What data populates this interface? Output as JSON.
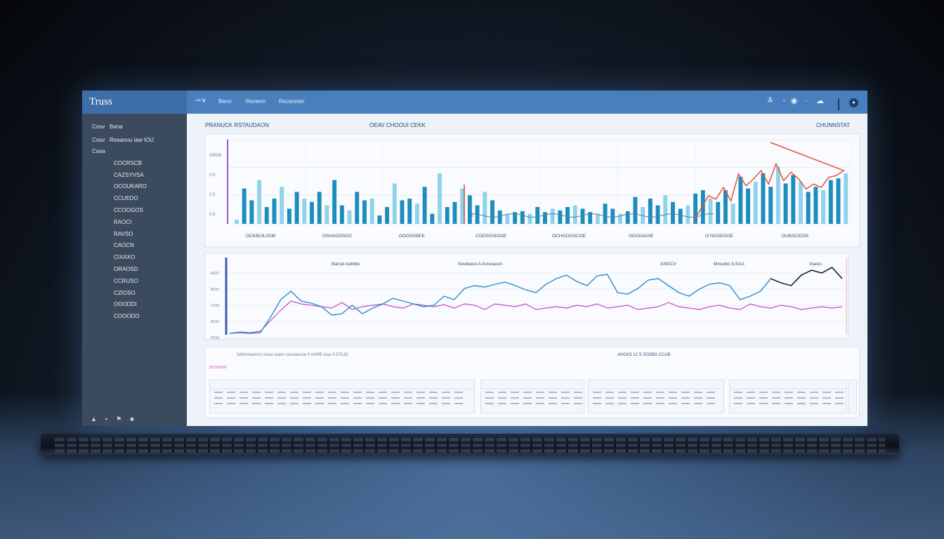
{
  "app": {
    "brand": "Truss",
    "top_nav": [
      "Benn",
      "Renenn",
      "Recennen"
    ]
  },
  "sidebar": {
    "header": [
      "Cosv",
      "Bana"
    ],
    "subheader": [
      "Cosv",
      "Reaanou iaw IOlJ"
    ],
    "items": [
      "Casa",
      "COCRSCB",
      "CAZSYVSA",
      "OCOUKARO",
      "CCUEDO",
      "CCOOGOS",
      "RAOCI",
      "RAVSO",
      "CAOCN",
      "CIXAXO",
      "ORAOSD",
      "CCRUSO",
      "CZIOSO",
      "OOODDI",
      "COOODO"
    ],
    "footer_icons": [
      "bell-icon",
      "lock-icon",
      "flag-icon",
      "chat-icon"
    ]
  },
  "chart1": {
    "left_title": "PRANUCK RSTAUDAON",
    "center_title": "OEAV CHOOUI CEKK",
    "right_title": "CHUNNSTAT",
    "ytick_labels": [
      "ORDB",
      "0.5",
      "0.5",
      "0.5"
    ],
    "xtick_labels": [
      "OCKBUILSOB",
      "OSHAOOSGC",
      "OOOSSBEE",
      "COOSSSIOOE",
      "OCHOOOSCOE",
      "OOSIAIASE",
      "O NOSEOOE",
      "OUBSCIOSE"
    ]
  },
  "chart2": {
    "labels": [
      "Bansd Aebbto",
      "Sewbaoo A Avnoauon",
      "ANOCV",
      "Mnoubo ILSAA",
      "Viaoio"
    ],
    "ytick_labels": [
      "ROO",
      "BOO",
      "COO",
      "BOO",
      "ROO"
    ]
  },
  "bottom": {
    "header_text": "Sdlnnneamsn noau seem conoaosoe 4 AARB Ioao 5 ESUO",
    "header_right": "ANCKS 12 S SOSBS CCAB",
    "tag_label": "DCOOOOI",
    "cards": [
      "D1",
      "D2",
      "D3",
      "D4",
      "D5"
    ]
  },
  "chart_data": [
    {
      "type": "bar",
      "title": "OEAV CHOOUI CEKK",
      "values": [
        5,
        42,
        28,
        52,
        20,
        30,
        44,
        18,
        38,
        30,
        26,
        38,
        22,
        52,
        22,
        16,
        38,
        28,
        30,
        10,
        20,
        48,
        28,
        30,
        24,
        44,
        12,
        60,
        20,
        26,
        42,
        34,
        22,
        38,
        28,
        16,
        12,
        14,
        15,
        12,
        20,
        14,
        18,
        16,
        20,
        22,
        18,
        14,
        12,
        24,
        18,
        12,
        15,
        32,
        20,
        30,
        22,
        34,
        26,
        18,
        22,
        36,
        40,
        30,
        26,
        40,
        24,
        56,
        42,
        50,
        60,
        44,
        68,
        48,
        58,
        50,
        38,
        44,
        40,
        52,
        54,
        60
      ],
      "colors": {
        "bar": "#1c8dbd",
        "bar_light": "#8fd3ea",
        "line": "#e2533a"
      },
      "ylim": [
        0,
        100
      ]
    },
    {
      "type": "line",
      "series": [
        {
          "values": [
            2,
            3,
            2,
            3,
            25,
            50,
            62,
            48,
            45,
            40,
            28,
            30,
            42,
            30,
            38,
            44,
            52,
            48,
            44,
            40,
            42,
            55,
            50,
            66,
            70,
            68,
            72,
            75,
            70,
            64,
            60,
            72,
            80,
            85,
            76,
            70,
            84,
            86,
            60,
            58,
            66,
            78,
            80,
            70,
            60,
            55,
            65,
            72,
            74,
            70,
            50,
            55,
            62,
            80,
            74,
            70,
            85,
            92,
            88,
            96,
            80
          ]
        },
        {
          "values": [
            2,
            4,
            3,
            5,
            20,
            35,
            48,
            44,
            42,
            40,
            38,
            46,
            36,
            40,
            42,
            44,
            40,
            38,
            44,
            42,
            40,
            43,
            38,
            44,
            42,
            36,
            44,
            42,
            40,
            44,
            36,
            38,
            40,
            38,
            42,
            40,
            44,
            38,
            40,
            42,
            36,
            38,
            40,
            46,
            40,
            38,
            36,
            40,
            42,
            38,
            36,
            44,
            40,
            38,
            42,
            40,
            36,
            38,
            40,
            38,
            40
          ]
        }
      ],
      "colors": {
        "a": "#2b8ccf",
        "b": "#c84ac4",
        "c": "#111111"
      },
      "ylim": [
        0,
        100
      ]
    }
  ]
}
